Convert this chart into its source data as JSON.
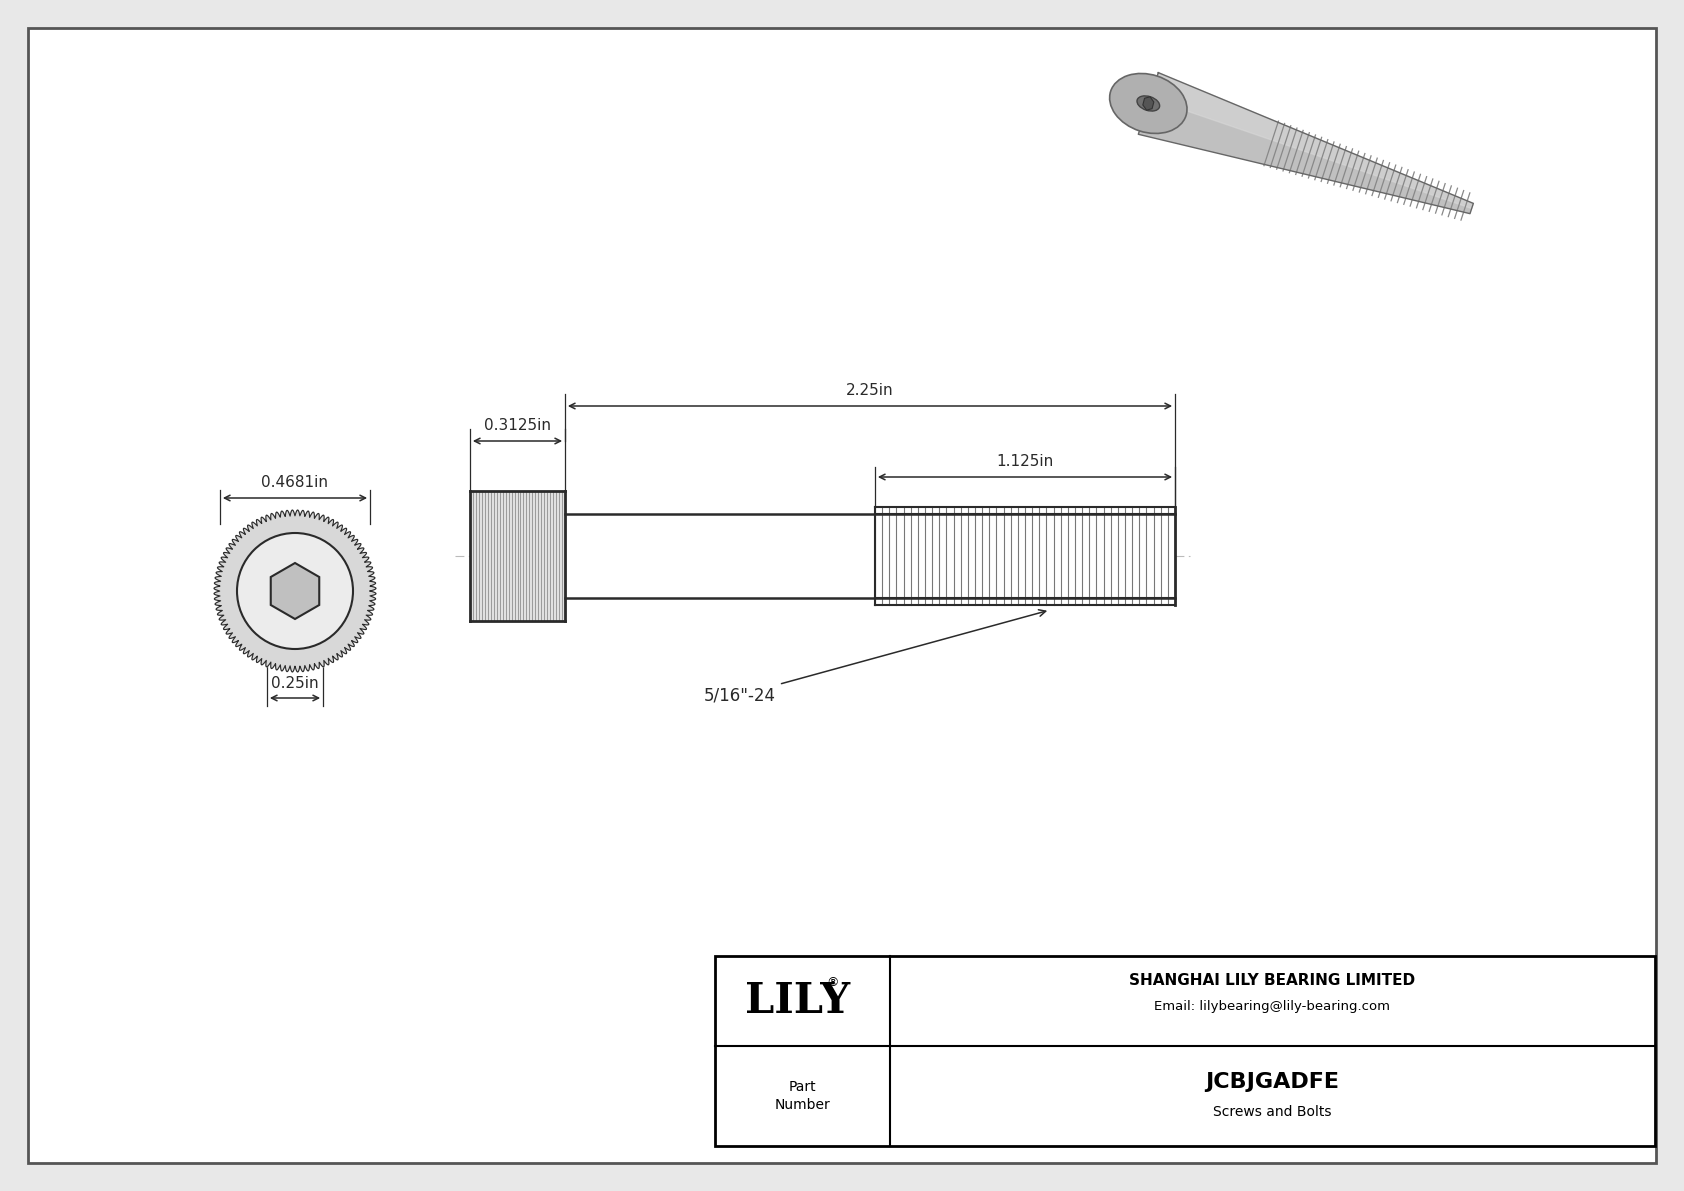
{
  "bg_color": "#e8e8e8",
  "drawing_bg": "#ffffff",
  "border_color": "#000000",
  "line_color": "#2a2a2a",
  "dim_color": "#2a2a2a",
  "title": "JCBJGADFE",
  "subtitle": "Screws and Bolts",
  "company": "SHANGHAI LILY BEARING LIMITED",
  "email": "Email: lilybearing@lily-bearing.com",
  "part_label": "Part\nNumber",
  "dim_head_width": "0.4681in",
  "dim_head_height": "0.3125in",
  "dim_total_length": "2.25in",
  "dim_thread_length": "1.125in",
  "dim_drive_size": "0.25in",
  "thread_label": "5/16\"-24",
  "font_size_dim": 11,
  "font_size_title": 14,
  "font_size_company": 10
}
